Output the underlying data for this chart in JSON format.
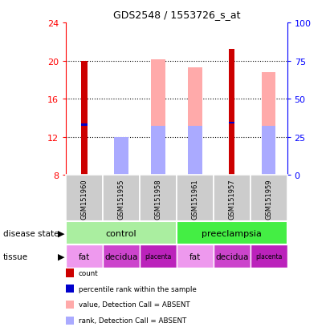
{
  "title": "GDS2548 / 1553726_s_at",
  "samples": [
    "GSM151960",
    "GSM151955",
    "GSM151958",
    "GSM151961",
    "GSM151957",
    "GSM151959"
  ],
  "ylim_left": [
    8,
    24
  ],
  "yticks_left": [
    8,
    12,
    16,
    20,
    24
  ],
  "yticks_right": [
    0,
    25,
    50,
    75,
    100
  ],
  "count_values": [
    20.0,
    null,
    null,
    null,
    21.2,
    null
  ],
  "percentile_values": [
    13.3,
    null,
    null,
    null,
    13.5,
    null
  ],
  "absent_value_values": [
    null,
    12.0,
    20.1,
    19.3,
    null,
    18.8
  ],
  "absent_rank_values": [
    null,
    12.0,
    13.2,
    13.2,
    null,
    13.2
  ],
  "color_count": "#cc0000",
  "color_percentile": "#0000cc",
  "color_absent_value": "#ffaaaa",
  "color_absent_rank": "#aaaaff",
  "bar_bottom": 8,
  "disease_groups": [
    [
      "control",
      0,
      3
    ],
    [
      "preeclampsia",
      3,
      6
    ]
  ],
  "disease_colors": {
    "control": "#aaeea0",
    "preeclampsia": "#44ee44"
  },
  "tissue_groups": [
    [
      "fat",
      0,
      1,
      "#ee99ee"
    ],
    [
      "decidua",
      1,
      2,
      "#cc44cc"
    ],
    [
      "placenta",
      2,
      3,
      "#bb22bb"
    ],
    [
      "fat",
      3,
      4,
      "#ee99ee"
    ],
    [
      "decidua",
      4,
      5,
      "#cc44cc"
    ],
    [
      "placenta",
      5,
      6,
      "#bb22bb"
    ]
  ],
  "legend_labels": [
    "count",
    "percentile rank within the sample",
    "value, Detection Call = ABSENT",
    "rank, Detection Call = ABSENT"
  ],
  "legend_colors": [
    "#cc0000",
    "#0000cc",
    "#ffaaaa",
    "#aaaaff"
  ]
}
